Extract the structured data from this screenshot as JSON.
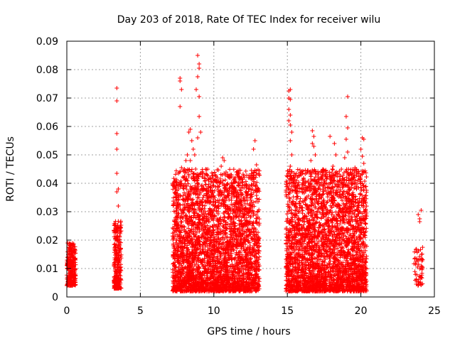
{
  "chart_data": {
    "type": "scatter",
    "title": "Day 203 of 2018, Rate Of TEC Index for receiver wilu",
    "xlabel": "GPS time / hours",
    "ylabel": "ROTI / TECUs",
    "xlim": [
      0,
      25
    ],
    "ylim": [
      0,
      0.09
    ],
    "x_ticks": [
      0,
      5,
      10,
      15,
      20,
      25
    ],
    "y_ticks": [
      0,
      0.01,
      0.02,
      0.03,
      0.04,
      0.05,
      0.06,
      0.07,
      0.08,
      0.09
    ],
    "grid": true,
    "legend": "none",
    "marker": "plus",
    "marker_color": "#ff0000",
    "clusters": [
      {
        "x_start": 0.0,
        "x_end": 0.6,
        "y_min": 0.004,
        "y_max": 0.019,
        "density": 260
      },
      {
        "x_start": 3.2,
        "x_end": 3.7,
        "y_min": 0.003,
        "y_max": 0.027,
        "density": 280
      },
      {
        "x_start": 7.2,
        "x_end": 13.1,
        "y_min": 0.002,
        "y_max": 0.045,
        "density": 3200
      },
      {
        "x_start": 14.9,
        "x_end": 20.4,
        "y_min": 0.002,
        "y_max": 0.045,
        "density": 3000
      },
      {
        "x_start": 23.6,
        "x_end": 24.2,
        "y_min": 0.004,
        "y_max": 0.018,
        "density": 60
      }
    ],
    "sparse_points": [
      [
        3.4,
        0.0735
      ],
      [
        3.4,
        0.069
      ],
      [
        3.4,
        0.0575
      ],
      [
        3.4,
        0.052
      ],
      [
        3.4,
        0.0435
      ],
      [
        3.4,
        0.037
      ],
      [
        3.5,
        0.038
      ],
      [
        3.5,
        0.032
      ],
      [
        7.6,
        0.038
      ],
      [
        7.8,
        0.04
      ],
      [
        8.0,
        0.045
      ],
      [
        8.1,
        0.048
      ],
      [
        8.2,
        0.05
      ],
      [
        7.8,
        0.0455
      ],
      [
        8.0,
        0.0425
      ],
      [
        7.7,
        0.077
      ],
      [
        7.7,
        0.076
      ],
      [
        7.8,
        0.073
      ],
      [
        7.7,
        0.067
      ],
      [
        8.3,
        0.058
      ],
      [
        8.4,
        0.059
      ],
      [
        8.5,
        0.055
      ],
      [
        8.6,
        0.052
      ],
      [
        8.4,
        0.048
      ],
      [
        8.9,
        0.085
      ],
      [
        9.0,
        0.082
      ],
      [
        9.0,
        0.0805
      ],
      [
        8.9,
        0.0775
      ],
      [
        8.8,
        0.073
      ],
      [
        9.0,
        0.0705
      ],
      [
        9.0,
        0.0635
      ],
      [
        9.1,
        0.058
      ],
      [
        8.9,
        0.056
      ],
      [
        8.7,
        0.05
      ],
      [
        10.6,
        0.049
      ],
      [
        10.7,
        0.048
      ],
      [
        10.5,
        0.046
      ],
      [
        11.4,
        0.037
      ],
      [
        12.8,
        0.055
      ],
      [
        12.7,
        0.052
      ],
      [
        12.9,
        0.0465
      ],
      [
        12.7,
        0.04
      ],
      [
        12.4,
        0.039
      ],
      [
        15.1,
        0.0725
      ],
      [
        15.2,
        0.073
      ],
      [
        15.1,
        0.07
      ],
      [
        15.2,
        0.0695
      ],
      [
        15.1,
        0.066
      ],
      [
        15.2,
        0.064
      ],
      [
        15.1,
        0.062
      ],
      [
        15.2,
        0.0605
      ],
      [
        15.3,
        0.058
      ],
      [
        15.2,
        0.055
      ],
      [
        15.3,
        0.05
      ],
      [
        15.2,
        0.046
      ],
      [
        15.4,
        0.042
      ],
      [
        16.7,
        0.0585
      ],
      [
        16.8,
        0.0565
      ],
      [
        16.7,
        0.054
      ],
      [
        16.8,
        0.053
      ],
      [
        16.9,
        0.05
      ],
      [
        16.6,
        0.048
      ],
      [
        17.9,
        0.0565
      ],
      [
        18.2,
        0.054
      ],
      [
        18.3,
        0.05
      ],
      [
        18.1,
        0.046
      ],
      [
        18.4,
        0.0435
      ],
      [
        18.0,
        0.042
      ],
      [
        19.1,
        0.0705
      ],
      [
        19.0,
        0.0635
      ],
      [
        19.1,
        0.0595
      ],
      [
        19.0,
        0.0555
      ],
      [
        19.1,
        0.051
      ],
      [
        18.9,
        0.049
      ],
      [
        19.6,
        0.0455
      ],
      [
        19.7,
        0.044
      ],
      [
        19.5,
        0.042
      ],
      [
        20.1,
        0.056
      ],
      [
        20.2,
        0.0555
      ],
      [
        20.0,
        0.052
      ],
      [
        20.1,
        0.0495
      ],
      [
        20.2,
        0.047
      ],
      [
        20.1,
        0.0435
      ],
      [
        20.0,
        0.04
      ],
      [
        23.9,
        0.029
      ],
      [
        24.0,
        0.0275
      ],
      [
        24.1,
        0.0305
      ],
      [
        24.0,
        0.0265
      ]
    ]
  }
}
